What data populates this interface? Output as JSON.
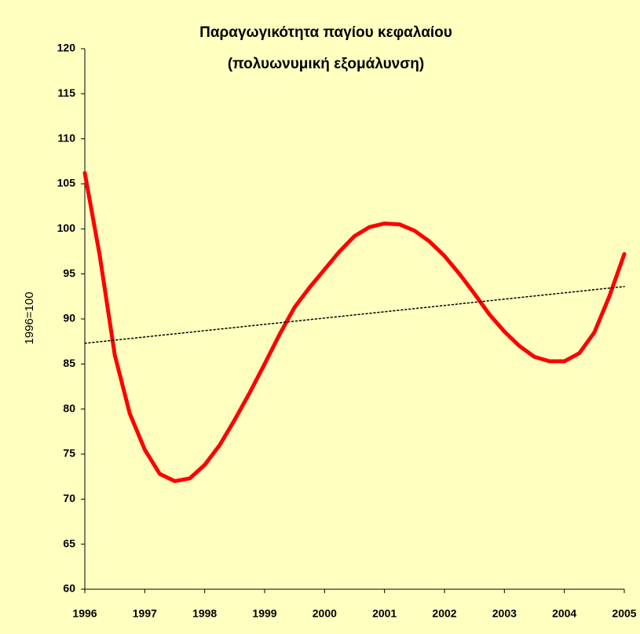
{
  "chart_data": {
    "type": "line",
    "title": "Παραγωγικότητα παγίου κεφαλαίου",
    "subtitle": "(πολυωνυμική εξομάλυνση)",
    "ylabel": "1996=100",
    "xlim": [
      1996,
      2005
    ],
    "xticks": [
      1996,
      1997,
      1998,
      1999,
      2000,
      2001,
      2002,
      2003,
      2004,
      2005
    ],
    "ylim": [
      60,
      120
    ],
    "yticks": [
      60,
      65,
      70,
      75,
      80,
      85,
      90,
      95,
      100,
      105,
      110,
      115,
      120
    ],
    "series": [
      {
        "color": "#ff0000",
        "line_style": "solid",
        "x": [
          1996,
          1996.25,
          1996.5,
          1996.75,
          1997,
          1997.25,
          1997.5,
          1997.75,
          1998,
          1998.25,
          1998.5,
          1998.75,
          1999,
          1999.25,
          1999.5,
          1999.75,
          2000,
          2000.25,
          2000.5,
          2000.75,
          2001,
          2001.25,
          2001.5,
          2001.75,
          2002,
          2002.25,
          2002.5,
          2002.75,
          2003,
          2003.25,
          2003.5,
          2003.75,
          2004,
          2004.25,
          2004.5,
          2004.75,
          2005
        ],
        "values": [
          106.2,
          97,
          86,
          79.5,
          75.5,
          72.8,
          72,
          72.3,
          73.8,
          76,
          78.8,
          81.8,
          85,
          88.3,
          91.3,
          93.5,
          95.5,
          97.5,
          99.2,
          100.2,
          100.6,
          100.5,
          99.8,
          98.6,
          97,
          95,
          92.8,
          90.5,
          88.6,
          87,
          85.8,
          85.3,
          85.3,
          86.2,
          88.5,
          92.5,
          97.2
        ]
      },
      {
        "color": "#000000",
        "line_style": "dotted",
        "x": [
          1996,
          2005
        ],
        "values": [
          87.3,
          93.6
        ]
      }
    ]
  }
}
